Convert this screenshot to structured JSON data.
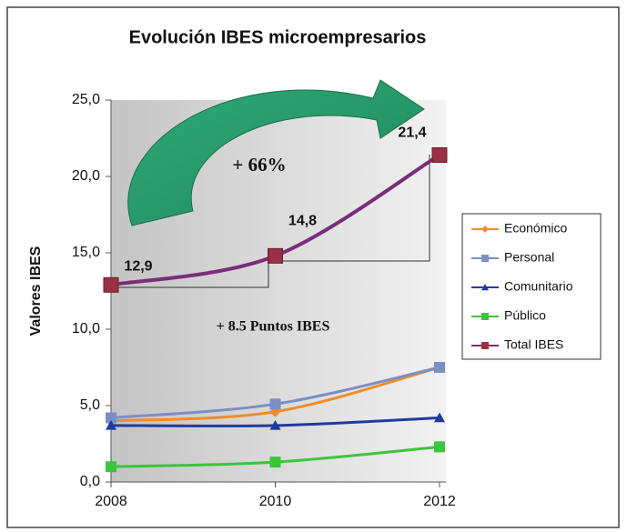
{
  "chart_data": {
    "type": "line",
    "title": "Evolución IBES microempresarios",
    "y_label": "Valores IBES",
    "x": [
      2008,
      2010,
      2012
    ],
    "xlim": [
      2008,
      2012
    ],
    "xticks": [
      2008,
      2010,
      2012
    ],
    "ylim": [
      0,
      25
    ],
    "yticks": [
      {
        "value": 0,
        "label": "0,0"
      },
      {
        "value": 5,
        "label": "5,0"
      },
      {
        "value": 10,
        "label": "10,0"
      },
      {
        "value": 15,
        "label": "15,0"
      },
      {
        "value": 20,
        "label": "20,0"
      },
      {
        "value": 25,
        "label": "25,0"
      }
    ],
    "legend": "right",
    "series": [
      {
        "name": "Económico",
        "color": "#f28c28",
        "marker": "diamond",
        "values": [
          4.0,
          4.6,
          7.5
        ]
      },
      {
        "name": "Personal",
        "color": "#7b8fc4",
        "marker": "square",
        "values": [
          4.2,
          5.1,
          7.5
        ]
      },
      {
        "name": "Comunitario",
        "color": "#1f3aa0",
        "marker": "triangle",
        "values": [
          3.7,
          3.7,
          4.2
        ]
      },
      {
        "name": "Público",
        "color": "#3cc43c",
        "marker": "square",
        "values": [
          1.0,
          1.3,
          2.3
        ]
      },
      {
        "name": "Total IBES",
        "color": "#7a2d78",
        "marker": "square",
        "values": [
          12.9,
          14.8,
          21.4
        ],
        "value_labels": [
          "12,9",
          "14,8",
          "21,4"
        ]
      }
    ],
    "annotations": [
      "+ 66%",
      "+ 8.5 Puntos IBES"
    ]
  }
}
